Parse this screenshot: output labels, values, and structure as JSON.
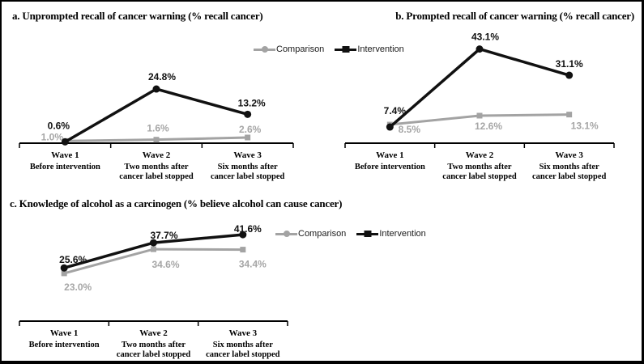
{
  "colors": {
    "intervention": "#111111",
    "comparison": "#a3a3a3",
    "comparison_label": "#a6a6a6",
    "axis": "#000000",
    "background": "#ffffff"
  },
  "chart_data": [
    {
      "id": "a",
      "type": "line",
      "title": "a. Unprompted recall of cancer warning (% recall cancer)",
      "xlabel": "",
      "ylabel": "",
      "ylim": [
        0,
        48
      ],
      "grid": false,
      "legend_position": "top-center",
      "categories": [
        "Wave 1",
        "Wave 2",
        "Wave 3"
      ],
      "category_sublabels": [
        [
          "Before intervention"
        ],
        [
          "Two months after",
          "cancer label stopped"
        ],
        [
          "Six months after",
          "cancer label stopped"
        ]
      ],
      "series": [
        {
          "name": "Comparison",
          "marker": "square",
          "color_key": "comparison",
          "values": [
            1.0,
            1.6,
            2.6
          ],
          "point_labels": [
            "1.0%",
            "1.6%",
            "2.6%"
          ]
        },
        {
          "name": "Intervention",
          "marker": "circle",
          "color_key": "intervention",
          "values": [
            0.6,
            24.8,
            13.2
          ],
          "point_labels": [
            "0.6%",
            "24.8%",
            "13.2%"
          ]
        }
      ]
    },
    {
      "id": "b",
      "type": "line",
      "title": "b. Prompted recall of cancer warning (% recall cancer)",
      "xlabel": "",
      "ylabel": "",
      "ylim": [
        0,
        48
      ],
      "grid": false,
      "legend_position": "none",
      "categories": [
        "Wave 1",
        "Wave 2",
        "Wave 3"
      ],
      "category_sublabels": [
        [
          "Before intervention"
        ],
        [
          "Two months after",
          "cancer label stopped"
        ],
        [
          "Six months after",
          "cancer label stopped"
        ]
      ],
      "series": [
        {
          "name": "Comparison",
          "marker": "square",
          "color_key": "comparison",
          "values": [
            8.5,
            12.6,
            13.1
          ],
          "point_labels": [
            "8.5%",
            "12.6%",
            "13.1%"
          ]
        },
        {
          "name": "Intervention",
          "marker": "circle",
          "color_key": "intervention",
          "values": [
            7.4,
            43.1,
            31.1
          ],
          "point_labels": [
            "7.4%",
            "43.1%",
            "31.1%"
          ]
        }
      ]
    },
    {
      "id": "c",
      "type": "line",
      "title": "c. Knowledge of alcohol as a carcinogen (% believe alcohol can cause cancer)",
      "xlabel": "",
      "ylabel": "",
      "ylim": [
        0,
        45
      ],
      "grid": false,
      "legend_position": "right",
      "categories": [
        "Wave 1",
        "Wave 2",
        "Wave 3"
      ],
      "category_sublabels": [
        [
          "Before intervention"
        ],
        [
          "Two months after",
          "cancer label stopped"
        ],
        [
          "Six months after",
          "cancer label stopped"
        ]
      ],
      "series": [
        {
          "name": "Comparison",
          "marker": "square",
          "color_key": "comparison",
          "values": [
            23.0,
            34.6,
            34.4
          ],
          "point_labels": [
            "23.0%",
            "34.6%",
            "34.4%"
          ]
        },
        {
          "name": "Intervention",
          "marker": "circle",
          "color_key": "intervention",
          "values": [
            25.6,
            37.7,
            41.6
          ],
          "point_labels": [
            "25.6%",
            "37.7%",
            "41.6%"
          ]
        }
      ]
    }
  ]
}
